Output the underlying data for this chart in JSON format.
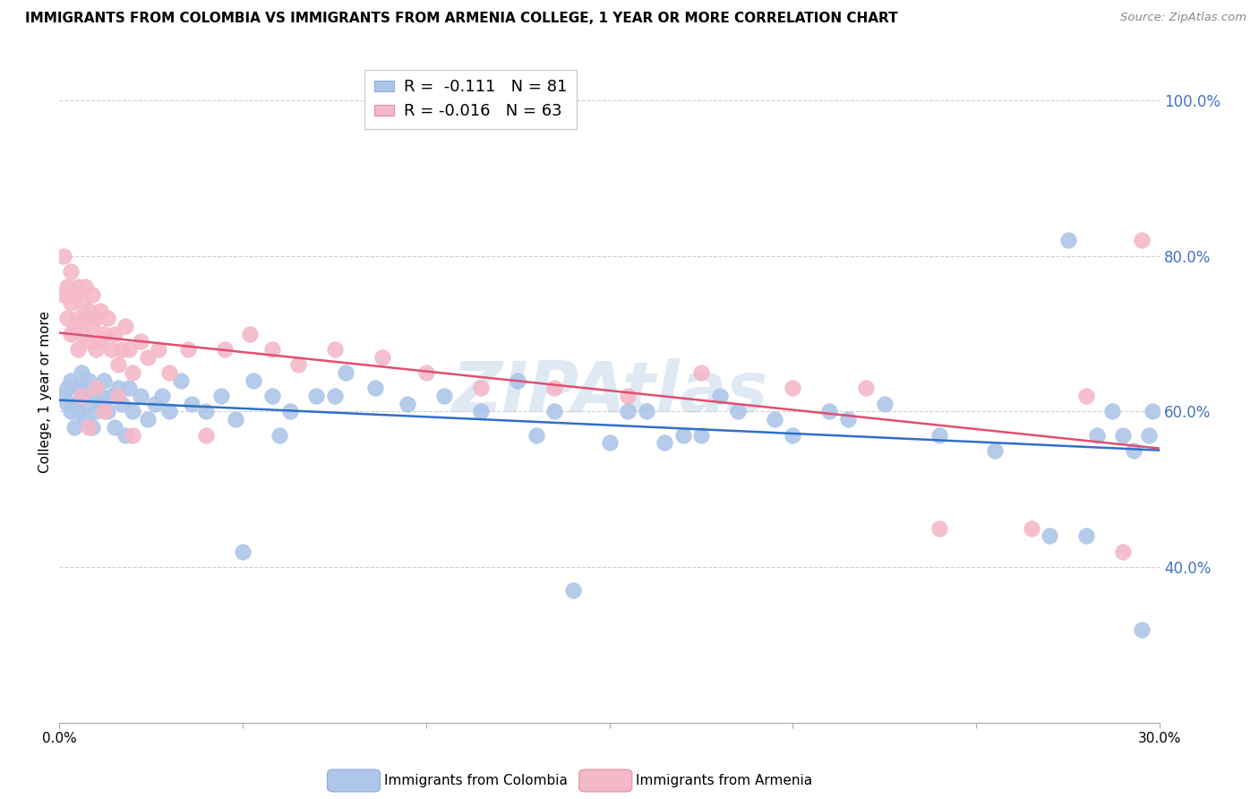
{
  "title": "IMMIGRANTS FROM COLOMBIA VS IMMIGRANTS FROM ARMENIA COLLEGE, 1 YEAR OR MORE CORRELATION CHART",
  "source": "Source: ZipAtlas.com",
  "ylabel": "College, 1 year or more",
  "xlim": [
    0.0,
    0.3
  ],
  "ylim": [
    0.2,
    1.05
  ],
  "yticks": [
    0.4,
    0.6,
    0.8,
    1.0
  ],
  "ytick_labels": [
    "40.0%",
    "60.0%",
    "80.0%",
    "100.0%"
  ],
  "xticks": [
    0.0,
    0.05,
    0.1,
    0.15,
    0.2,
    0.25,
    0.3
  ],
  "xtick_labels": [
    "0.0%",
    "",
    "",
    "",
    "",
    "",
    "30.0%"
  ],
  "colombia_R": -0.111,
  "colombia_N": 81,
  "armenia_R": -0.016,
  "armenia_N": 63,
  "colombia_color": "#aec6e8",
  "armenia_color": "#f4b8c8",
  "colombia_line_color": "#3070c8",
  "armenia_line_color": "#e05070",
  "watermark": "ZIPAtlas",
  "colombia_x": [
    0.001,
    0.002,
    0.002,
    0.003,
    0.003,
    0.004,
    0.004,
    0.005,
    0.005,
    0.006,
    0.006,
    0.007,
    0.007,
    0.008,
    0.008,
    0.009,
    0.009,
    0.01,
    0.01,
    0.011,
    0.011,
    0.012,
    0.013,
    0.014,
    0.015,
    0.016,
    0.017,
    0.018,
    0.019,
    0.02,
    0.022,
    0.024,
    0.026,
    0.028,
    0.03,
    0.033,
    0.036,
    0.04,
    0.044,
    0.048,
    0.053,
    0.058,
    0.063,
    0.07,
    0.078,
    0.086,
    0.095,
    0.105,
    0.115,
    0.125,
    0.135,
    0.15,
    0.16,
    0.17,
    0.18,
    0.195,
    0.21,
    0.225,
    0.24,
    0.255,
    0.27,
    0.275,
    0.28,
    0.283,
    0.287,
    0.29,
    0.293,
    0.295,
    0.297,
    0.298,
    0.13,
    0.14,
    0.155,
    0.165,
    0.175,
    0.185,
    0.2,
    0.215,
    0.05,
    0.06,
    0.075
  ],
  "colombia_y": [
    0.62,
    0.61,
    0.63,
    0.6,
    0.64,
    0.61,
    0.58,
    0.63,
    0.6,
    0.65,
    0.62,
    0.59,
    0.63,
    0.61,
    0.64,
    0.62,
    0.58,
    0.63,
    0.6,
    0.62,
    0.61,
    0.64,
    0.6,
    0.62,
    0.58,
    0.63,
    0.61,
    0.57,
    0.63,
    0.6,
    0.62,
    0.59,
    0.61,
    0.62,
    0.6,
    0.64,
    0.61,
    0.6,
    0.62,
    0.59,
    0.64,
    0.62,
    0.6,
    0.62,
    0.65,
    0.63,
    0.61,
    0.62,
    0.6,
    0.64,
    0.6,
    0.56,
    0.6,
    0.57,
    0.62,
    0.59,
    0.6,
    0.61,
    0.57,
    0.55,
    0.44,
    0.82,
    0.44,
    0.57,
    0.6,
    0.57,
    0.55,
    0.32,
    0.57,
    0.6,
    0.57,
    0.37,
    0.6,
    0.56,
    0.57,
    0.6,
    0.57,
    0.59,
    0.42,
    0.57,
    0.62
  ],
  "armenia_x": [
    0.001,
    0.001,
    0.002,
    0.002,
    0.003,
    0.003,
    0.003,
    0.004,
    0.004,
    0.005,
    0.005,
    0.005,
    0.006,
    0.006,
    0.007,
    0.007,
    0.008,
    0.008,
    0.009,
    0.009,
    0.01,
    0.01,
    0.011,
    0.011,
    0.012,
    0.013,
    0.014,
    0.015,
    0.016,
    0.017,
    0.018,
    0.019,
    0.02,
    0.022,
    0.024,
    0.027,
    0.03,
    0.035,
    0.04,
    0.045,
    0.052,
    0.058,
    0.065,
    0.075,
    0.088,
    0.1,
    0.115,
    0.135,
    0.155,
    0.175,
    0.2,
    0.22,
    0.24,
    0.265,
    0.28,
    0.29,
    0.295,
    0.006,
    0.008,
    0.01,
    0.012,
    0.016,
    0.02
  ],
  "armenia_y": [
    0.75,
    0.8,
    0.72,
    0.76,
    0.7,
    0.74,
    0.78,
    0.71,
    0.75,
    0.72,
    0.68,
    0.76,
    0.7,
    0.74,
    0.72,
    0.76,
    0.69,
    0.73,
    0.71,
    0.75,
    0.68,
    0.72,
    0.69,
    0.73,
    0.7,
    0.72,
    0.68,
    0.7,
    0.66,
    0.68,
    0.71,
    0.68,
    0.65,
    0.69,
    0.67,
    0.68,
    0.65,
    0.68,
    0.57,
    0.68,
    0.7,
    0.68,
    0.66,
    0.68,
    0.67,
    0.65,
    0.63,
    0.63,
    0.62,
    0.65,
    0.63,
    0.63,
    0.45,
    0.45,
    0.62,
    0.42,
    0.82,
    0.62,
    0.58,
    0.63,
    0.6,
    0.62,
    0.57
  ]
}
